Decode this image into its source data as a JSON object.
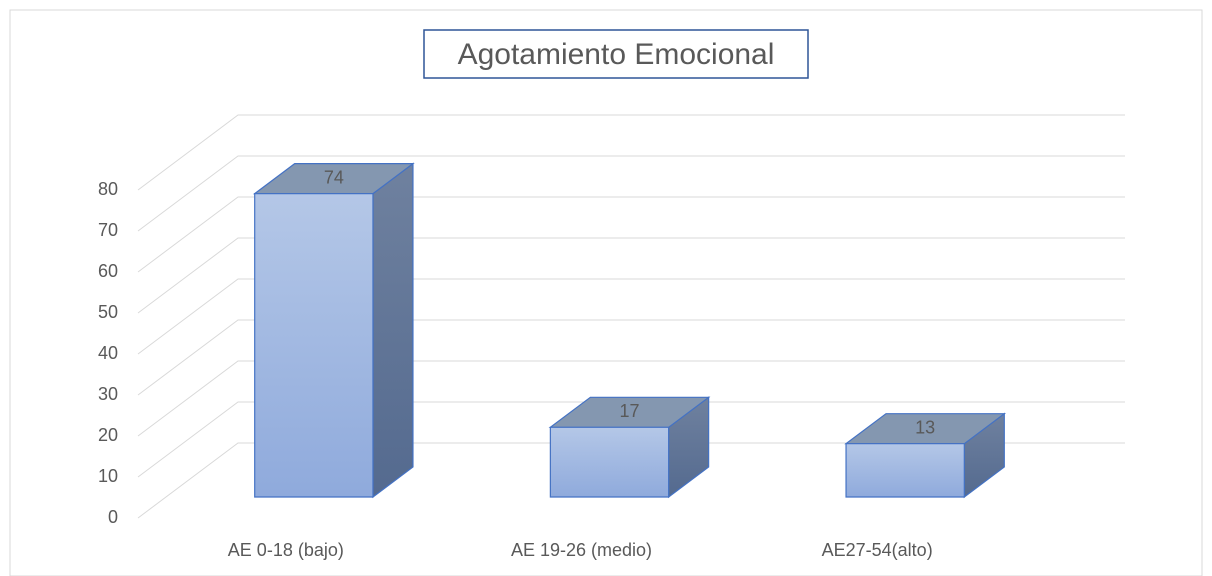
{
  "chart_data": {
    "type": "bar3d",
    "title": "Agotamiento Emocional",
    "categories": [
      "AE 0-18 (bajo)",
      "AE 19-26 (medio)",
      "AE27-54(alto)"
    ],
    "values": [
      74,
      17,
      13
    ],
    "color": "#8faadc",
    "ylim": [
      0,
      80
    ],
    "yticks": [
      0,
      10,
      20,
      30,
      40,
      50,
      60,
      70,
      80
    ],
    "grid": true
  }
}
